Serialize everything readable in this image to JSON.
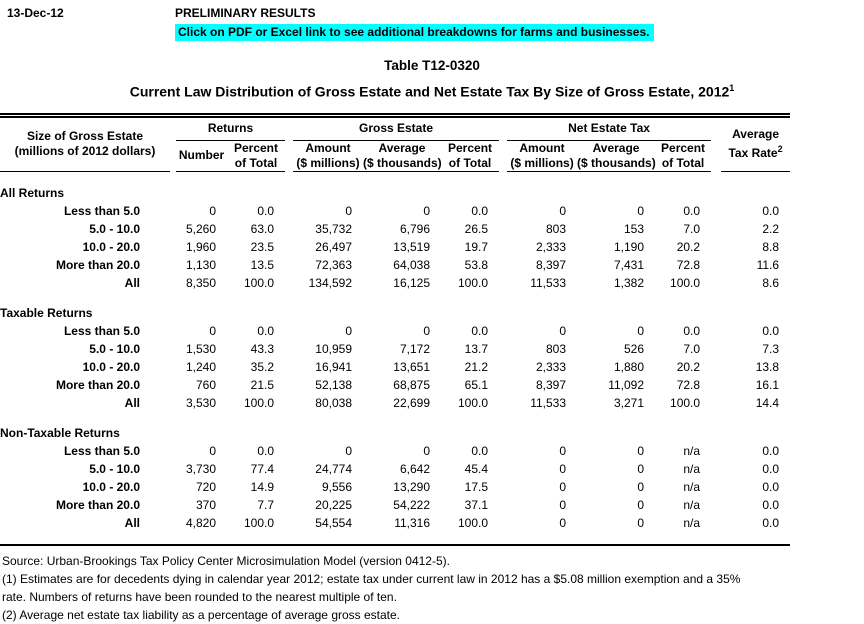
{
  "meta": {
    "date": "13-Dec-12",
    "preliminary": "PRELIMINARY RESULTS",
    "notice": "Click on PDF or Excel link to see additional breakdowns for farms and businesses.",
    "notice_highlight_color": "#00FFFF"
  },
  "title": "Table T12-0320",
  "subtitle": "Current Law Distribution of Gross Estate and Net Estate Tax By Size of Gross Estate, 2012",
  "subtitle_sup": "1",
  "table": {
    "header": {
      "col1": [
        "Size of Gross Estate",
        "(millions of 2012 dollars)"
      ],
      "groups": [
        {
          "label": "Returns"
        },
        {
          "label": "Gross Estate"
        },
        {
          "label": "Net Estate Tax"
        }
      ],
      "cols": [
        [
          "Number",
          ""
        ],
        [
          "Percent",
          "of Total"
        ],
        [
          "Amount",
          "($ millions)"
        ],
        [
          "Average",
          "($ thousands)"
        ],
        [
          "Percent",
          "of Total"
        ],
        [
          "Amount",
          "($ millions)"
        ],
        [
          "Average",
          "($ thousands)"
        ],
        [
          "Percent",
          "of Total"
        ]
      ],
      "avg_rate": [
        "Average",
        "Tax Rate"
      ],
      "avg_rate_sup": "2"
    },
    "sections": [
      {
        "name": "All Returns",
        "rows": [
          {
            "label": "Less than 5.0",
            "values": [
              "0",
              "0.0",
              "0",
              "0",
              "0.0",
              "0",
              "0",
              "0.0",
              "0.0"
            ]
          },
          {
            "label": "5.0 - 10.0",
            "values": [
              "5,260",
              "63.0",
              "35,732",
              "6,796",
              "26.5",
              "803",
              "153",
              "7.0",
              "2.2"
            ]
          },
          {
            "label": "10.0 - 20.0",
            "values": [
              "1,960",
              "23.5",
              "26,497",
              "13,519",
              "19.7",
              "2,333",
              "1,190",
              "20.2",
              "8.8"
            ]
          },
          {
            "label": "More than 20.0",
            "values": [
              "1,130",
              "13.5",
              "72,363",
              "64,038",
              "53.8",
              "8,397",
              "7,431",
              "72.8",
              "11.6"
            ]
          },
          {
            "label": "All",
            "values": [
              "8,350",
              "100.0",
              "134,592",
              "16,125",
              "100.0",
              "11,533",
              "1,382",
              "100.0",
              "8.6"
            ]
          }
        ]
      },
      {
        "name": "Taxable Returns",
        "rows": [
          {
            "label": "Less than 5.0",
            "values": [
              "0",
              "0.0",
              "0",
              "0",
              "0.0",
              "0",
              "0",
              "0.0",
              "0.0"
            ]
          },
          {
            "label": "5.0 - 10.0",
            "values": [
              "1,530",
              "43.3",
              "10,959",
              "7,172",
              "13.7",
              "803",
              "526",
              "7.0",
              "7.3"
            ]
          },
          {
            "label": "10.0 - 20.0",
            "values": [
              "1,240",
              "35.2",
              "16,941",
              "13,651",
              "21.2",
              "2,333",
              "1,880",
              "20.2",
              "13.8"
            ]
          },
          {
            "label": "More than 20.0",
            "values": [
              "760",
              "21.5",
              "52,138",
              "68,875",
              "65.1",
              "8,397",
              "11,092",
              "72.8",
              "16.1"
            ]
          },
          {
            "label": "All",
            "values": [
              "3,530",
              "100.0",
              "80,038",
              "22,699",
              "100.0",
              "11,533",
              "3,271",
              "100.0",
              "14.4"
            ]
          }
        ]
      },
      {
        "name": "Non-Taxable Returns",
        "rows": [
          {
            "label": "Less than 5.0",
            "values": [
              "0",
              "0.0",
              "0",
              "0",
              "0.0",
              "0",
              "0",
              "n/a",
              "0.0"
            ]
          },
          {
            "label": "5.0 - 10.0",
            "values": [
              "3,730",
              "77.4",
              "24,774",
              "6,642",
              "45.4",
              "0",
              "0",
              "n/a",
              "0.0"
            ]
          },
          {
            "label": "10.0 - 20.0",
            "values": [
              "720",
              "14.9",
              "9,556",
              "13,290",
              "17.5",
              "0",
              "0",
              "n/a",
              "0.0"
            ]
          },
          {
            "label": "More than 20.0",
            "values": [
              "370",
              "7.7",
              "20,225",
              "54,222",
              "37.1",
              "0",
              "0",
              "n/a",
              "0.0"
            ]
          },
          {
            "label": "All",
            "values": [
              "4,820",
              "100.0",
              "54,554",
              "11,316",
              "100.0",
              "0",
              "0",
              "n/a",
              "0.0"
            ]
          }
        ]
      }
    ]
  },
  "footer": {
    "source": "Source: Urban-Brookings Tax Policy Center Microsimulation Model (version 0412-5).",
    "note1_lines": [
      "(1) Estimates are for decedents dying in calendar year 2012; estate tax under current law in 2012 has a $5.08 million exemption and a 35%",
      "rate. Numbers of returns have been rounded to the nearest multiple of ten."
    ],
    "note2": "(2) Average net estate tax liability as a percentage of average gross estate."
  }
}
